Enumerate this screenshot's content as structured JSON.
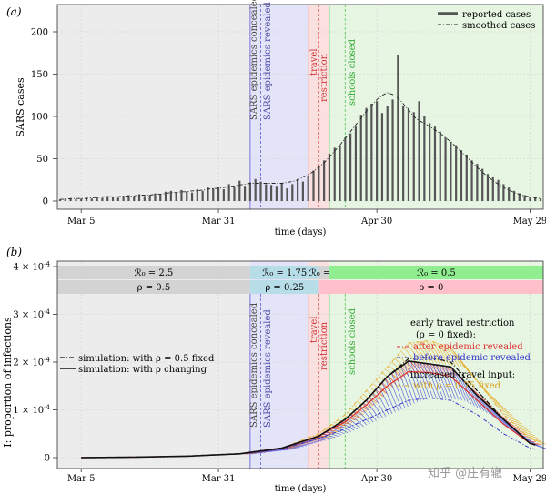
{
  "panel_a": {
    "label": "(a)",
    "ylabel": "SARS cases",
    "xlabel": "time (days)",
    "ylim": [
      0,
      230
    ],
    "yticks": [
      "0",
      "50",
      "100",
      "150",
      "200"
    ],
    "xtick_labels": [
      "Mar 5",
      "Mar 31",
      "Apr 30",
      "May 29"
    ],
    "legend": [
      "reported cases",
      "smoothed cases"
    ],
    "phase_labels": [
      "SARS epidemics concealed",
      "SARS epidemics revealed",
      "travel restriction",
      "schools closed"
    ]
  },
  "panel_b": {
    "label": "(b)",
    "ylabel": "I: proportion of infections",
    "xlabel": "time (days)",
    "yticks": [
      "0",
      "1 × 10^-4",
      "2 × 10^-4",
      "3 × 10^-4",
      "4 × 10^-4"
    ],
    "xtick_labels": [
      "Mar 5",
      "Mar 31",
      "Apr 30",
      "May 29"
    ],
    "phase_labels": [
      "SARS epidemics concealed",
      "SARS epidemics revealed",
      "travel restriction",
      "schools closed"
    ],
    "r0_row": [
      {
        "text": "R0 = 2.5",
        "color": "#d3d3d3"
      },
      {
        "text": "R0 = 1.75",
        "color": "#b7dde8"
      },
      {
        "text": "R0 = 1",
        "color": "#d3d3d3"
      },
      {
        "text": "R0 = 0.5",
        "color": "#90ee90"
      }
    ],
    "rho_row": [
      {
        "text": "ρ = 0.5",
        "color": "#d3d3d3"
      },
      {
        "text": "ρ = 0.25",
        "color": "#b7dde8"
      },
      {
        "text": "ρ = 0",
        "color": "#ffc0cb"
      }
    ],
    "legend_sim": [
      "simulation: with ρ = 0.5 fixed",
      "simulation: with ρ changing"
    ],
    "legend_scen": {
      "title1": "early travel restriction",
      "title2": "(ρ = 0 fixed):",
      "after": "after epidemic revealed",
      "before": "before epidemic revealed",
      "title3": "increased travel input:",
      "increased": "with ρ = 0.75 fixed"
    }
  },
  "watermark": "知乎 @庄有辙",
  "colors": {
    "concealed": "#ececec",
    "revealed": "#e4e4f8",
    "travel": "#fbe0e0",
    "schools": "#e6f6e3",
    "blue": "#5555dd",
    "red": "#e03030",
    "green": "#33bb33",
    "orange": "#e8b030"
  },
  "chart_data": [
    {
      "type": "bar",
      "title": "",
      "xlabel": "time (days)",
      "ylabel": "SARS cases",
      "ylim": [
        0,
        230
      ],
      "x_start": "Mar 1",
      "x_end": "May 31",
      "series": [
        {
          "name": "reported cases",
          "values": [
            2,
            3,
            3,
            2,
            3,
            4,
            3,
            5,
            4,
            6,
            5,
            4,
            6,
            7,
            5,
            8,
            6,
            7,
            9,
            8,
            11,
            12,
            10,
            13,
            11,
            10,
            14,
            12,
            16,
            15,
            17,
            14,
            20,
            17,
            24,
            18,
            22,
            26,
            23,
            20,
            19,
            18,
            21,
            15,
            20,
            26,
            23,
            30,
            36,
            42,
            48,
            56,
            63,
            66,
            75,
            80,
            88,
            102,
            110,
            115,
            118,
            104,
            112,
            120,
            173,
            112,
            110,
            105,
            118,
            100,
            92,
            88,
            82,
            75,
            70,
            66,
            60,
            55,
            48,
            44,
            38,
            32,
            28,
            25,
            20,
            16,
            12,
            9,
            7,
            5,
            4,
            3
          ]
        },
        {
          "name": "smoothed cases",
          "values": [
            2,
            2,
            3,
            3,
            3,
            3,
            4,
            4,
            5,
            5,
            5,
            5,
            6,
            6,
            6,
            7,
            7,
            7,
            8,
            8,
            9,
            10,
            10,
            11,
            11,
            12,
            12,
            13,
            14,
            15,
            15,
            16,
            17,
            18,
            19,
            20,
            21,
            21,
            21,
            21,
            21,
            21,
            21,
            22,
            23,
            25,
            28,
            31,
            35,
            40,
            45,
            52,
            59,
            66,
            74,
            82,
            90,
            98,
            106,
            113,
            120,
            125,
            128,
            126,
            122,
            115,
            108,
            100,
            95,
            92,
            88,
            84,
            80,
            75,
            70,
            64,
            58,
            52,
            46,
            40,
            34,
            29,
            24,
            20,
            16,
            13,
            10,
            8,
            6,
            5,
            4,
            3
          ]
        }
      ]
    },
    {
      "type": "line",
      "title": "",
      "xlabel": "time (days)",
      "ylabel": "I: proportion of infections",
      "ylim": [
        0,
        0.0004
      ],
      "x_start": "Mar 5",
      "x_end": "May 31",
      "series": [
        {
          "name": "simulation: with ρ = 0.5 fixed",
          "x": [
            0,
            10,
            20,
            30,
            38,
            45,
            50,
            54,
            58,
            62,
            66,
            70,
            75,
            80,
            85,
            91
          ],
          "y": [
            0.0,
            1e-06,
            3e-06,
            8e-06,
            2e-05,
            4.5e-05,
            8e-05,
            0.00012,
            0.00017,
            0.000207,
            0.00021,
            0.0002,
            0.00014,
            8e-05,
            3e-05,
            1e-05
          ]
        },
        {
          "name": "simulation: with ρ changing",
          "x": [
            0,
            10,
            20,
            30,
            38,
            45,
            50,
            54,
            58,
            62,
            66,
            70,
            75,
            80,
            85,
            91
          ],
          "y": [
            0.0,
            1e-06,
            3e-06,
            8e-06,
            2e-05,
            4.5e-05,
            8e-05,
            0.00012,
            0.00017,
            0.000202,
            0.000196,
            0.00019,
            0.00013,
            8e-05,
            3e-05,
            1e-05
          ]
        },
        {
          "name": "after epidemic revealed",
          "x": [
            0,
            10,
            20,
            30,
            38,
            45,
            50,
            54,
            58,
            62,
            66,
            70,
            75,
            80,
            85,
            91
          ],
          "y": [
            0.0,
            1e-06,
            3e-06,
            8e-06,
            2e-05,
            4.5e-05,
            7.5e-05,
            0.00011,
            0.00015,
            0.00018,
            0.000178,
            0.00017,
            0.00012,
            7e-05,
            3e-05,
            8e-06
          ]
        },
        {
          "name": "before epidemic revealed",
          "x": [
            0,
            10,
            20,
            30,
            38,
            45,
            50,
            54,
            58,
            62,
            66,
            70,
            75,
            80,
            85,
            91
          ],
          "y": [
            0.0,
            1e-06,
            3e-06,
            8e-06,
            1.8e-05,
            4e-05,
            6e-05,
            8e-05,
            0.0001,
            0.00012,
            0.000125,
            0.00012,
            9e-05,
            5e-05,
            2e-05,
            6e-06
          ]
        },
        {
          "name": "with ρ = 0.75 fixed",
          "x": [
            0,
            10,
            20,
            30,
            38,
            45,
            50,
            54,
            58,
            62,
            66,
            70,
            75,
            80,
            85,
            91
          ],
          "y": [
            0.0,
            1e-06,
            3e-06,
            8e-06,
            2e-05,
            5e-05,
            9e-05,
            0.00014,
            0.00019,
            0.00024,
            0.000245,
            0.00023,
            0.00016,
            9e-05,
            4e-05,
            1.2e-05
          ]
        }
      ]
    }
  ]
}
